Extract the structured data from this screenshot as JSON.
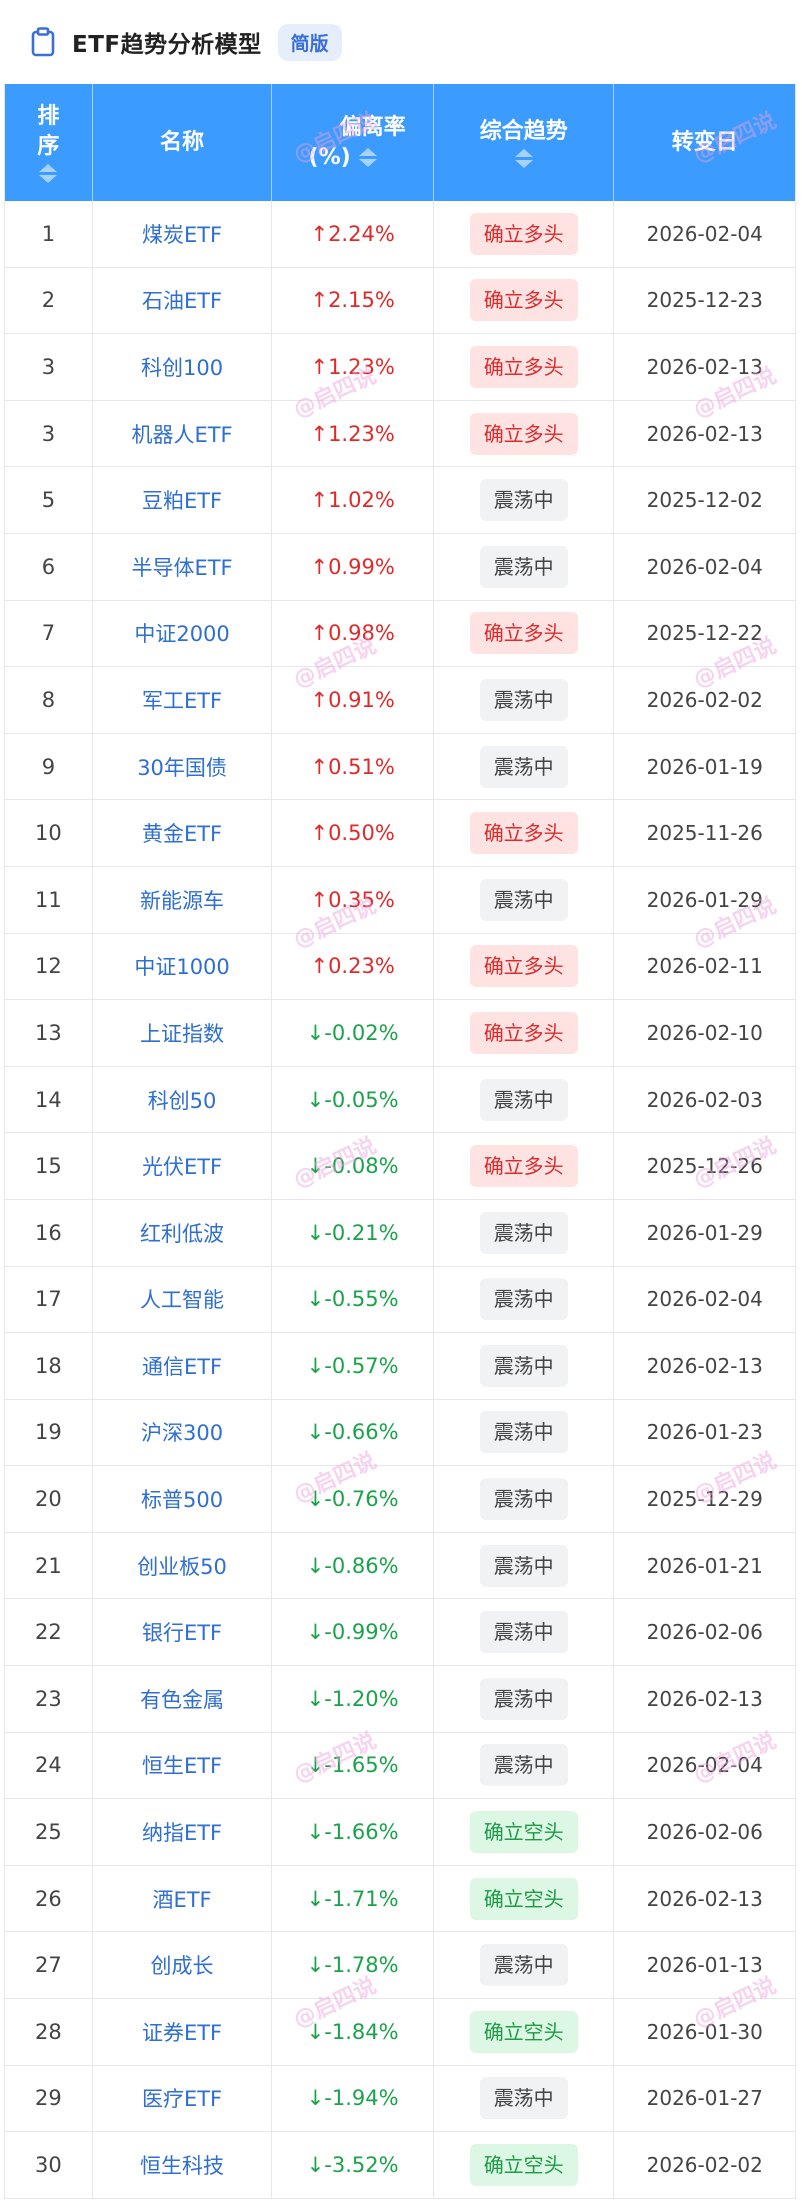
{
  "header": {
    "title": "ETF趋势分析模型",
    "badge": "简版"
  },
  "columns": {
    "rank": [
      "排",
      "序"
    ],
    "name": "名称",
    "deviation": [
      "偏离率",
      "(%)"
    ],
    "trend": "综合趋势",
    "change_date": "转变日"
  },
  "watermark": "@启四说",
  "colors": {
    "header_bg": "#3b9bff",
    "up": "#e02a2a",
    "down": "#1aa34a",
    "bull_bg": "#ffe3e3",
    "bear_bg": "#dcf7e3",
    "flat_bg": "#f1f2f4",
    "name": "#2f6fd1"
  },
  "rows": [
    {
      "rank": "1",
      "name": "煤炭ETF",
      "deviation": "↑2.24%",
      "dir": "up",
      "trend": "确立多头",
      "type": "bull",
      "date": "2026-02-04"
    },
    {
      "rank": "2",
      "name": "石油ETF",
      "deviation": "↑2.15%",
      "dir": "up",
      "trend": "确立多头",
      "type": "bull",
      "date": "2025-12-23"
    },
    {
      "rank": "3",
      "name": "科创100",
      "deviation": "↑1.23%",
      "dir": "up",
      "trend": "确立多头",
      "type": "bull",
      "date": "2026-02-13"
    },
    {
      "rank": "3",
      "name": "机器人ETF",
      "deviation": "↑1.23%",
      "dir": "up",
      "trend": "确立多头",
      "type": "bull",
      "date": "2026-02-13"
    },
    {
      "rank": "5",
      "name": "豆粕ETF",
      "deviation": "↑1.02%",
      "dir": "up",
      "trend": "震荡中",
      "type": "flat",
      "date": "2025-12-02"
    },
    {
      "rank": "6",
      "name": "半导体ETF",
      "deviation": "↑0.99%",
      "dir": "up",
      "trend": "震荡中",
      "type": "flat",
      "date": "2026-02-04"
    },
    {
      "rank": "7",
      "name": "中证2000",
      "deviation": "↑0.98%",
      "dir": "up",
      "trend": "确立多头",
      "type": "bull",
      "date": "2025-12-22"
    },
    {
      "rank": "8",
      "name": "军工ETF",
      "deviation": "↑0.91%",
      "dir": "up",
      "trend": "震荡中",
      "type": "flat",
      "date": "2026-02-02"
    },
    {
      "rank": "9",
      "name": "30年国债",
      "deviation": "↑0.51%",
      "dir": "up",
      "trend": "震荡中",
      "type": "flat",
      "date": "2026-01-19"
    },
    {
      "rank": "10",
      "name": "黄金ETF",
      "deviation": "↑0.50%",
      "dir": "up",
      "trend": "确立多头",
      "type": "bull",
      "date": "2025-11-26"
    },
    {
      "rank": "11",
      "name": "新能源车",
      "deviation": "↑0.35%",
      "dir": "up",
      "trend": "震荡中",
      "type": "flat",
      "date": "2026-01-29"
    },
    {
      "rank": "12",
      "name": "中证1000",
      "deviation": "↑0.23%",
      "dir": "up",
      "trend": "确立多头",
      "type": "bull",
      "date": "2026-02-11"
    },
    {
      "rank": "13",
      "name": "上证指数",
      "deviation": "↓-0.02%",
      "dir": "down",
      "trend": "确立多头",
      "type": "bull",
      "date": "2026-02-10"
    },
    {
      "rank": "14",
      "name": "科创50",
      "deviation": "↓-0.05%",
      "dir": "down",
      "trend": "震荡中",
      "type": "flat",
      "date": "2026-02-03"
    },
    {
      "rank": "15",
      "name": "光伏ETF",
      "deviation": "↓-0.08%",
      "dir": "down",
      "trend": "确立多头",
      "type": "bull",
      "date": "2025-12-26"
    },
    {
      "rank": "16",
      "name": "红利低波",
      "deviation": "↓-0.21%",
      "dir": "down",
      "trend": "震荡中",
      "type": "flat",
      "date": "2026-01-29"
    },
    {
      "rank": "17",
      "name": "人工智能",
      "deviation": "↓-0.55%",
      "dir": "down",
      "trend": "震荡中",
      "type": "flat",
      "date": "2026-02-04"
    },
    {
      "rank": "18",
      "name": "通信ETF",
      "deviation": "↓-0.57%",
      "dir": "down",
      "trend": "震荡中",
      "type": "flat",
      "date": "2026-02-13"
    },
    {
      "rank": "19",
      "name": "沪深300",
      "deviation": "↓-0.66%",
      "dir": "down",
      "trend": "震荡中",
      "type": "flat",
      "date": "2026-01-23"
    },
    {
      "rank": "20",
      "name": "标普500",
      "deviation": "↓-0.76%",
      "dir": "down",
      "trend": "震荡中",
      "type": "flat",
      "date": "2025-12-29"
    },
    {
      "rank": "21",
      "name": "创业板50",
      "deviation": "↓-0.86%",
      "dir": "down",
      "trend": "震荡中",
      "type": "flat",
      "date": "2026-01-21"
    },
    {
      "rank": "22",
      "name": "银行ETF",
      "deviation": "↓-0.99%",
      "dir": "down",
      "trend": "震荡中",
      "type": "flat",
      "date": "2026-02-06"
    },
    {
      "rank": "23",
      "name": "有色金属",
      "deviation": "↓-1.20%",
      "dir": "down",
      "trend": "震荡中",
      "type": "flat",
      "date": "2026-02-13"
    },
    {
      "rank": "24",
      "name": "恒生ETF",
      "deviation": "↓-1.65%",
      "dir": "down",
      "trend": "震荡中",
      "type": "flat",
      "date": "2026-02-04"
    },
    {
      "rank": "25",
      "name": "纳指ETF",
      "deviation": "↓-1.66%",
      "dir": "down",
      "trend": "确立空头",
      "type": "bear",
      "date": "2026-02-06"
    },
    {
      "rank": "26",
      "name": "酒ETF",
      "deviation": "↓-1.71%",
      "dir": "down",
      "trend": "确立空头",
      "type": "bear",
      "date": "2026-02-13"
    },
    {
      "rank": "27",
      "name": "创成长",
      "deviation": "↓-1.78%",
      "dir": "down",
      "trend": "震荡中",
      "type": "flat",
      "date": "2026-01-13"
    },
    {
      "rank": "28",
      "name": "证券ETF",
      "deviation": "↓-1.84%",
      "dir": "down",
      "trend": "确立空头",
      "type": "bear",
      "date": "2026-01-30"
    },
    {
      "rank": "29",
      "name": "医疗ETF",
      "deviation": "↓-1.94%",
      "dir": "down",
      "trend": "震荡中",
      "type": "flat",
      "date": "2026-01-27"
    },
    {
      "rank": "30",
      "name": "恒生科技",
      "deviation": "↓-3.52%",
      "dir": "down",
      "trend": "确立空头",
      "type": "bear",
      "date": "2026-02-02"
    }
  ]
}
